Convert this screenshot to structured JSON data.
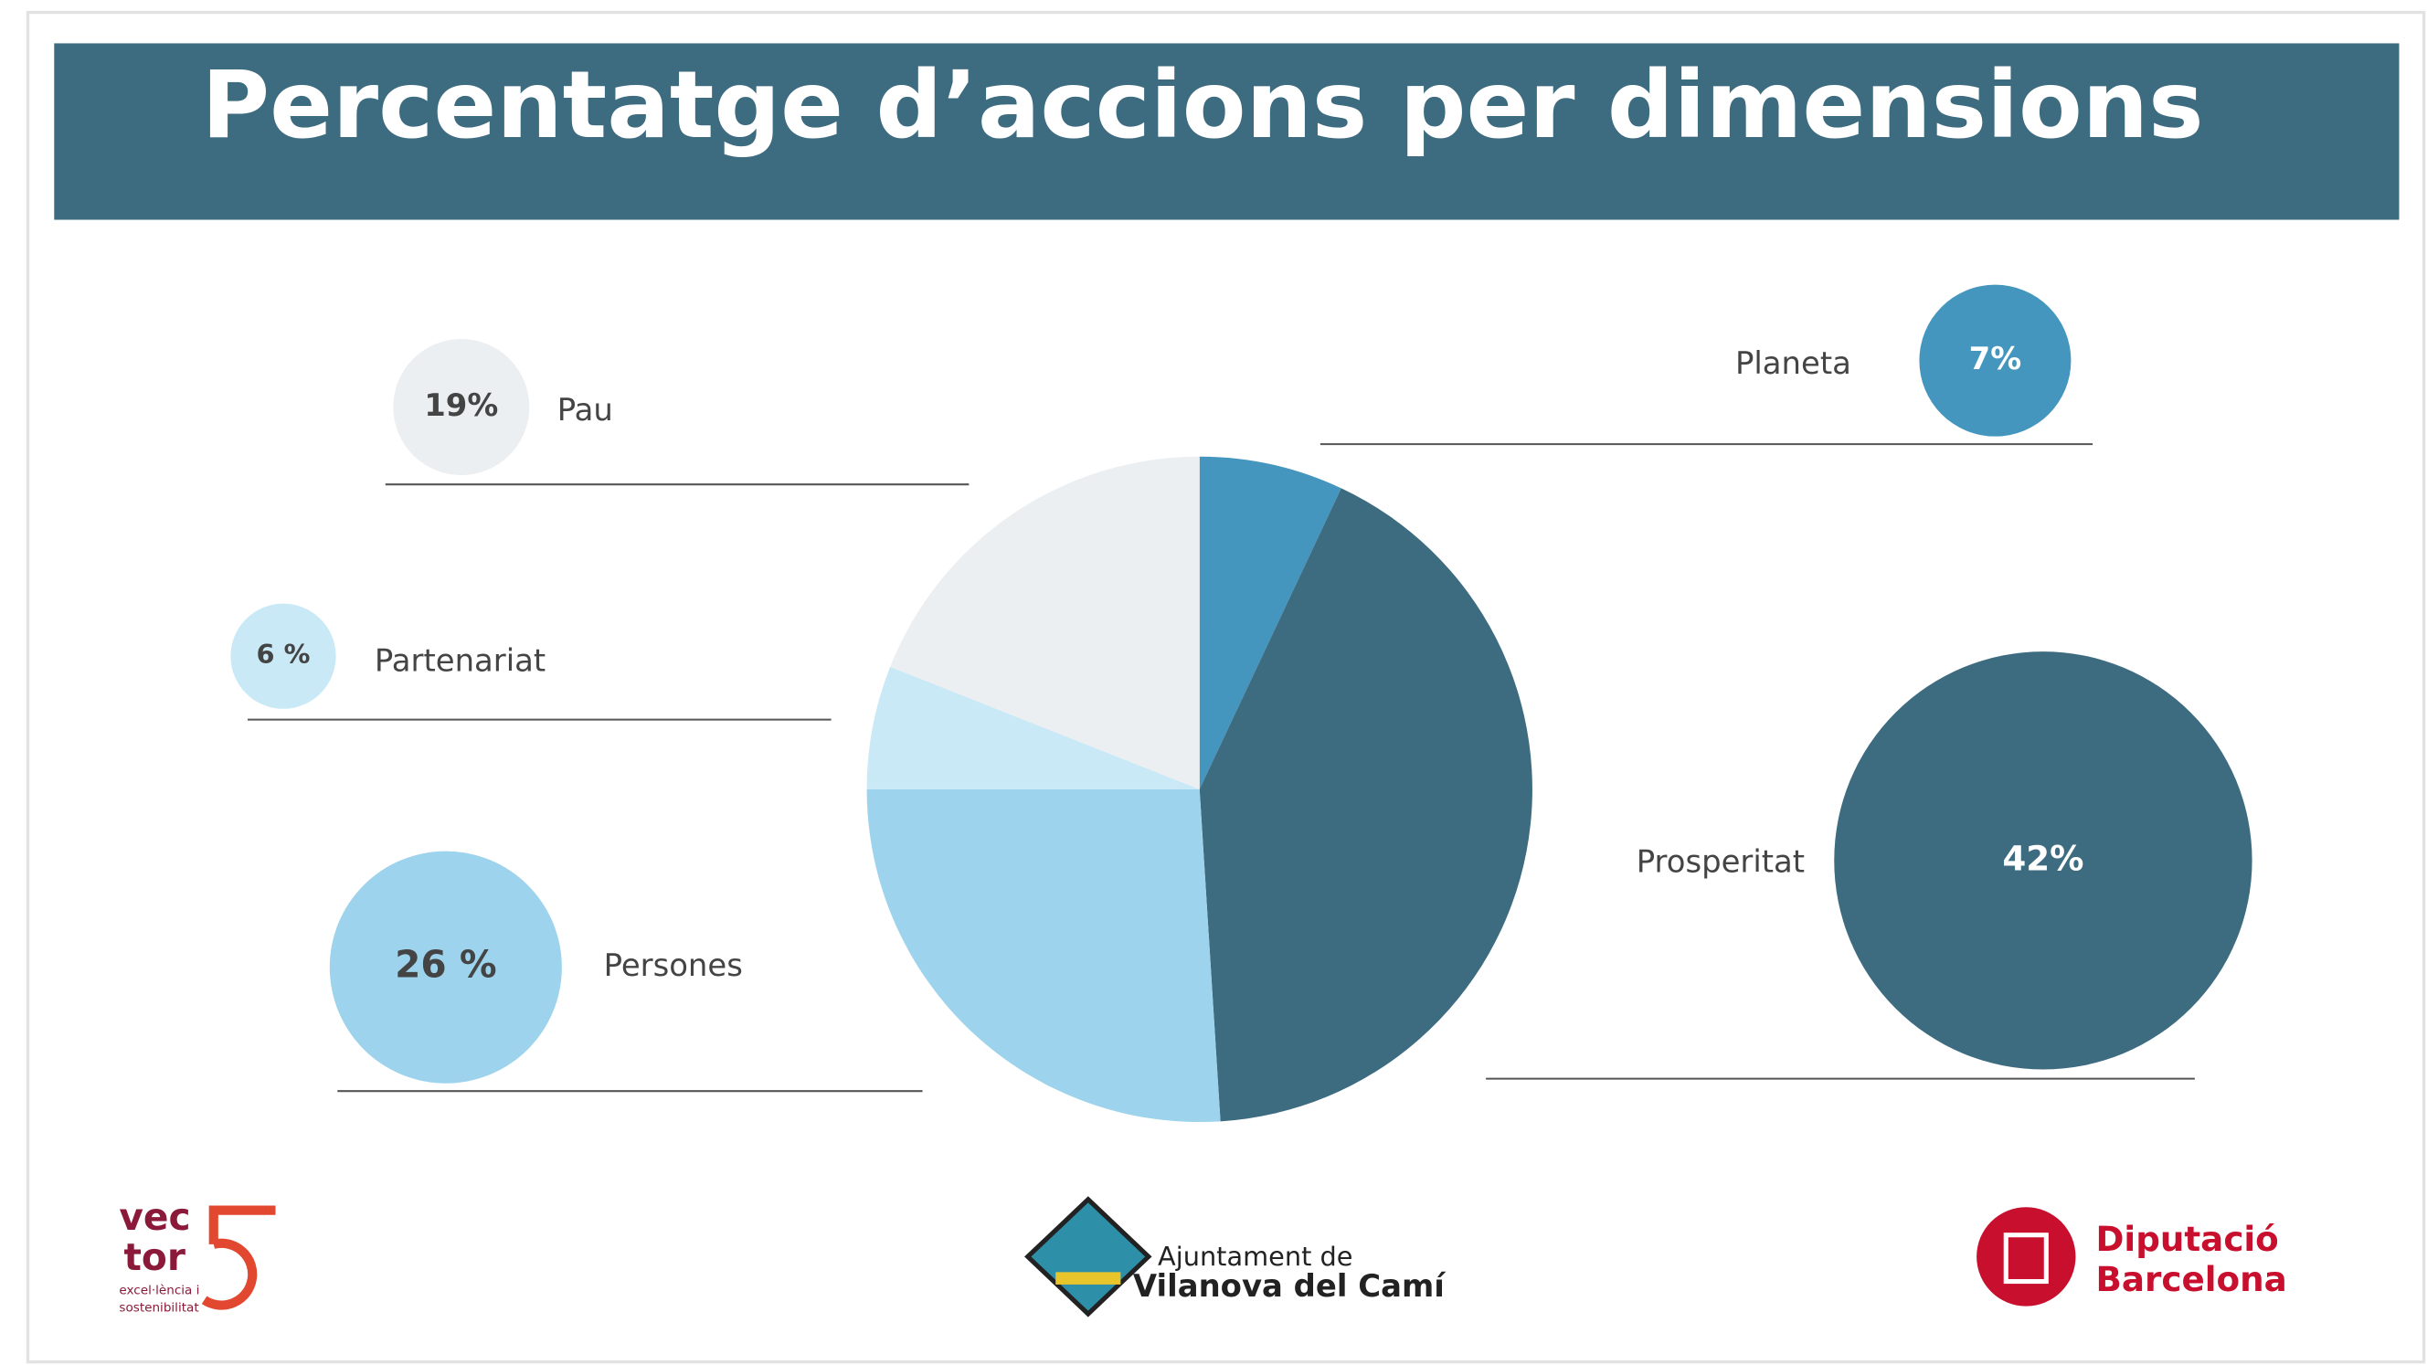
{
  "chart_data": {
    "type": "pie",
    "title": "Percentatge d’accions per dimensions",
    "categories": [
      "Planeta",
      "Prosperitat",
      "Persones",
      "Partenariat",
      "Pau"
    ],
    "values": [
      7,
      42,
      26,
      6,
      19
    ],
    "value_labels": [
      "7%",
      "42%",
      "26 %",
      "6 %",
      "19%"
    ],
    "colors": [
      "#4596bf",
      "#3d6b80",
      "#9dd3ec",
      "#c9e9f6",
      "#eceff1"
    ]
  },
  "logos": {
    "vector": [
      "vec",
      "tor",
      "excel·lència i",
      "sostenibilitat"
    ],
    "ajuntament": [
      "Ajuntament de",
      "Vilanova del Camí"
    ],
    "diputacio": [
      "Diputació",
      "Barcelona"
    ]
  }
}
